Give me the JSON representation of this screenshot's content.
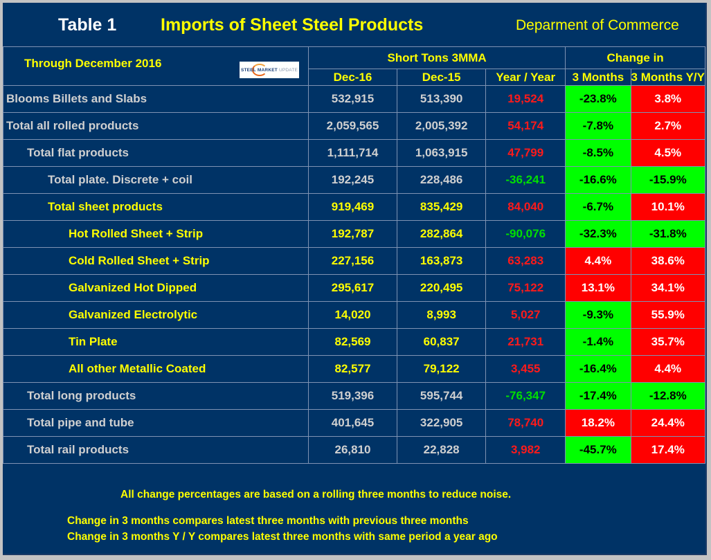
{
  "header": {
    "table_label": "Table 1",
    "title": "Imports of Sheet Steel Products",
    "source": "Deparment of Commerce"
  },
  "subheader": {
    "period": "Through December 2016",
    "logo": {
      "icon": "steel-market-update-logo",
      "part1": "STEEL",
      "part2": "MARKET",
      "part3": "UPDATE"
    },
    "group_short_tons": "Short Tons 3MMA",
    "group_change": "Change in",
    "columns": [
      "Dec-16",
      "Dec-15",
      "Year / Year",
      "3 Months",
      "3 Months Y/Y"
    ]
  },
  "colors": {
    "panel_bg": "#003366",
    "frame_bg": "#c3c3c3",
    "highlight_text": "#ffff00",
    "default_text": "#d0d0d0",
    "increase": "#ff0000",
    "decrease": "#00ff00"
  },
  "rows": [
    {
      "label": "Blooms Billets and Slabs",
      "level": 0,
      "color": "gray",
      "dec16": "532,915",
      "dec15": "513,390",
      "yoy": "19,524",
      "yoy_sign": "pos",
      "chg3m": "-23.8%",
      "chg3m_status": "good",
      "chg3m_yy": "3.8%",
      "chg3m_yy_status": "bad"
    },
    {
      "label": "Total all rolled products",
      "level": 0,
      "color": "gray",
      "dec16": "2,059,565",
      "dec15": "2,005,392",
      "yoy": "54,174",
      "yoy_sign": "pos",
      "chg3m": "-7.8%",
      "chg3m_status": "good",
      "chg3m_yy": "2.7%",
      "chg3m_yy_status": "bad"
    },
    {
      "label": "Total flat products",
      "level": 1,
      "color": "gray",
      "dec16": "1,111,714",
      "dec15": "1,063,915",
      "yoy": "47,799",
      "yoy_sign": "pos",
      "chg3m": "-8.5%",
      "chg3m_status": "good",
      "chg3m_yy": "4.5%",
      "chg3m_yy_status": "bad"
    },
    {
      "label": "Total plate. Discrete + coil",
      "level": 2,
      "color": "gray",
      "dec16": "192,245",
      "dec15": "228,486",
      "yoy": "-36,241",
      "yoy_sign": "neg",
      "chg3m": "-16.6%",
      "chg3m_status": "good",
      "chg3m_yy": "-15.9%",
      "chg3m_yy_status": "good"
    },
    {
      "label": "Total sheet products",
      "level": 2,
      "color": "yellow",
      "dec16": "919,469",
      "dec15": "835,429",
      "yoy": "84,040",
      "yoy_sign": "pos",
      "chg3m": "-6.7%",
      "chg3m_status": "good",
      "chg3m_yy": "10.1%",
      "chg3m_yy_status": "bad"
    },
    {
      "label": "Hot Rolled Sheet + Strip",
      "level": 3,
      "color": "yellow",
      "dec16": "192,787",
      "dec15": "282,864",
      "yoy": "-90,076",
      "yoy_sign": "neg",
      "chg3m": "-32.3%",
      "chg3m_status": "good",
      "chg3m_yy": "-31.8%",
      "chg3m_yy_status": "good"
    },
    {
      "label": "Cold Rolled Sheet + Strip",
      "level": 3,
      "color": "yellow",
      "dec16": "227,156",
      "dec15": "163,873",
      "yoy": "63,283",
      "yoy_sign": "pos",
      "chg3m": "4.4%",
      "chg3m_status": "bad",
      "chg3m_yy": "38.6%",
      "chg3m_yy_status": "bad"
    },
    {
      "label": "Galvanized Hot Dipped",
      "level": 3,
      "color": "yellow",
      "dec16": "295,617",
      "dec15": "220,495",
      "yoy": "75,122",
      "yoy_sign": "pos",
      "chg3m": "13.1%",
      "chg3m_status": "bad",
      "chg3m_yy": "34.1%",
      "chg3m_yy_status": "bad"
    },
    {
      "label": "Galvanized Electrolytic",
      "level": 3,
      "color": "yellow",
      "dec16": "14,020",
      "dec15": "8,993",
      "yoy": "5,027",
      "yoy_sign": "pos",
      "chg3m": "-9.3%",
      "chg3m_status": "good",
      "chg3m_yy": "55.9%",
      "chg3m_yy_status": "bad"
    },
    {
      "label": "Tin Plate",
      "level": 3,
      "color": "yellow",
      "dec16": "82,569",
      "dec15": "60,837",
      "yoy": "21,731",
      "yoy_sign": "pos",
      "chg3m": "-1.4%",
      "chg3m_status": "good",
      "chg3m_yy": "35.7%",
      "chg3m_yy_status": "bad"
    },
    {
      "label": "All other Metallic Coated",
      "level": 3,
      "color": "yellow",
      "dec16": "82,577",
      "dec15": "79,122",
      "yoy": "3,455",
      "yoy_sign": "pos",
      "chg3m": "-16.4%",
      "chg3m_status": "good",
      "chg3m_yy": "4.4%",
      "chg3m_yy_status": "bad"
    },
    {
      "label": "Total long products",
      "level": 1,
      "color": "gray",
      "dec16": "519,396",
      "dec15": "595,744",
      "yoy": "-76,347",
      "yoy_sign": "neg",
      "chg3m": "-17.4%",
      "chg3m_status": "good",
      "chg3m_yy": "-12.8%",
      "chg3m_yy_status": "good"
    },
    {
      "label": "Total pipe and tube",
      "level": 1,
      "color": "gray",
      "dec16": "401,645",
      "dec15": "322,905",
      "yoy": "78,740",
      "yoy_sign": "pos",
      "chg3m": "18.2%",
      "chg3m_status": "bad",
      "chg3m_yy": "24.4%",
      "chg3m_yy_status": "bad"
    },
    {
      "label": "Total rail products",
      "level": 1,
      "color": "gray",
      "dec16": "26,810",
      "dec15": "22,828",
      "yoy": "3,982",
      "yoy_sign": "pos",
      "chg3m": "-45.7%",
      "chg3m_status": "good",
      "chg3m_yy": "17.4%",
      "chg3m_yy_status": "bad"
    }
  ],
  "notes": [
    "All change percentages are based on a rolling three months to reduce noise.",
    "Change in 3 months compares latest three months with previous three months",
    "Change in 3 months  Y / Y compares latest three months with same period a year ago"
  ]
}
